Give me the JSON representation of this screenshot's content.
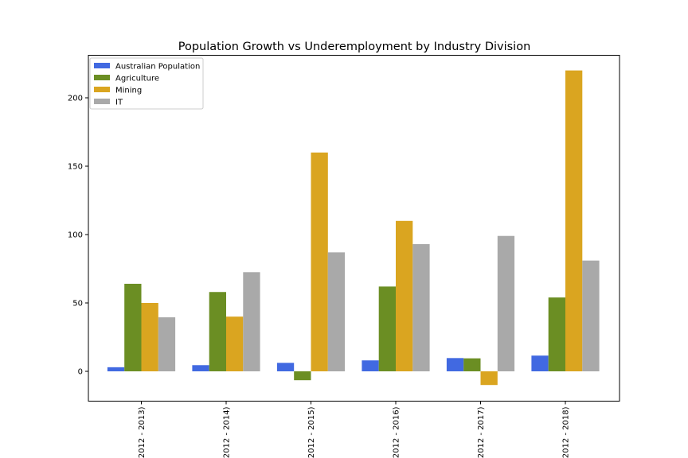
{
  "chart_data": {
    "type": "bar",
    "title": "Population Growth vs Underemployment by Industry Division",
    "xlabel": "",
    "ylabel": "",
    "categories": [
      "2012 - 2013)",
      "2012 - 2014)",
      "2012 - 2015)",
      "2012 - 2016)",
      "2012 - 2017)",
      "2012 - 2018)"
    ],
    "ylim": [
      -22,
      220
    ],
    "yticks": [
      0,
      50,
      100,
      150,
      200
    ],
    "grid": false,
    "legend_position": "top-left",
    "series": [
      {
        "name": "Australian Population",
        "color": "#4169e1",
        "values": [
          3,
          4.5,
          6.2,
          8,
          9.7,
          11.5
        ]
      },
      {
        "name": "Agriculture",
        "color": "#6b8e23",
        "values": [
          64,
          58,
          -6.5,
          62,
          9.5,
          54
        ]
      },
      {
        "name": "Mining",
        "color": "#daa520",
        "values": [
          50,
          40,
          160,
          110,
          -10,
          220
        ]
      },
      {
        "name": "IT",
        "color": "#a9a9a9",
        "values": [
          39.5,
          72.5,
          87,
          93,
          99,
          81
        ]
      }
    ]
  }
}
